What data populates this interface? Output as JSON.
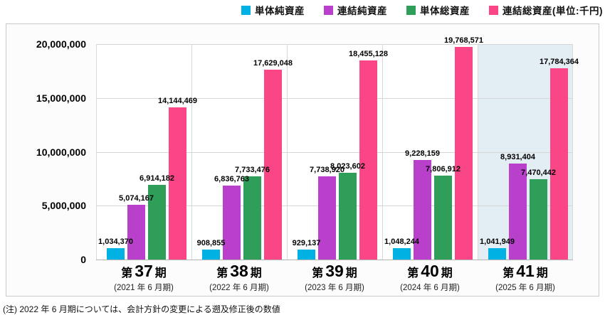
{
  "legend": {
    "items": [
      {
        "label": "単体純資産",
        "color": "#00B1E4"
      },
      {
        "label": "連結純資産",
        "color": "#B840CB"
      },
      {
        "label": "単体総資産",
        "color": "#2E9E58"
      },
      {
        "label": "連結総資産(単位:千円)",
        "color": "#FA4687"
      }
    ]
  },
  "chart_data": {
    "type": "bar",
    "unit": "千円",
    "categories": [
      {
        "prefix": "第",
        "number": "37",
        "suffix": "期",
        "sub": "(2021 年 6 月期)"
      },
      {
        "prefix": "第",
        "number": "38",
        "suffix": "期",
        "sub": "(2022 年 6 月期)"
      },
      {
        "prefix": "第",
        "number": "39",
        "suffix": "期",
        "sub": "(2023 年 6 月期)"
      },
      {
        "prefix": "第",
        "number": "40",
        "suffix": "期",
        "sub": "(2024 年 6 月期)"
      },
      {
        "prefix": "第",
        "number": "41",
        "suffix": "期",
        "sub": "(2025 年 6 月期)"
      }
    ],
    "series": [
      {
        "name": "単体純資産",
        "color": "#00B1E4",
        "values": [
          1034370,
          908855,
          929137,
          1048244,
          1041949
        ]
      },
      {
        "name": "連結純資産",
        "color": "#B840CB",
        "values": [
          5074167,
          6836763,
          7738920,
          9228159,
          8931404
        ]
      },
      {
        "name": "単体総資産",
        "color": "#2E9E58",
        "values": [
          6914182,
          7733476,
          8023602,
          7806912,
          7470442
        ]
      },
      {
        "name": "連結総資産",
        "color": "#FA4687",
        "values": [
          14144469,
          17629048,
          18455128,
          19768571,
          17784364
        ]
      }
    ],
    "ylim": [
      0,
      20000000
    ],
    "ytick_values": [
      0,
      5000000,
      10000000,
      15000000,
      20000000
    ],
    "ytick_labels": [
      "0",
      "5,000,000",
      "10,000,000",
      "15,000,000",
      "20,000,000"
    ],
    "grid": true,
    "legend_position": "top-right",
    "highlight_index": 4,
    "highlight_color": "#e3edf4"
  },
  "note": "(注) 2022 年 6 月期については、会計方針の変更による遡及修正後の数値"
}
